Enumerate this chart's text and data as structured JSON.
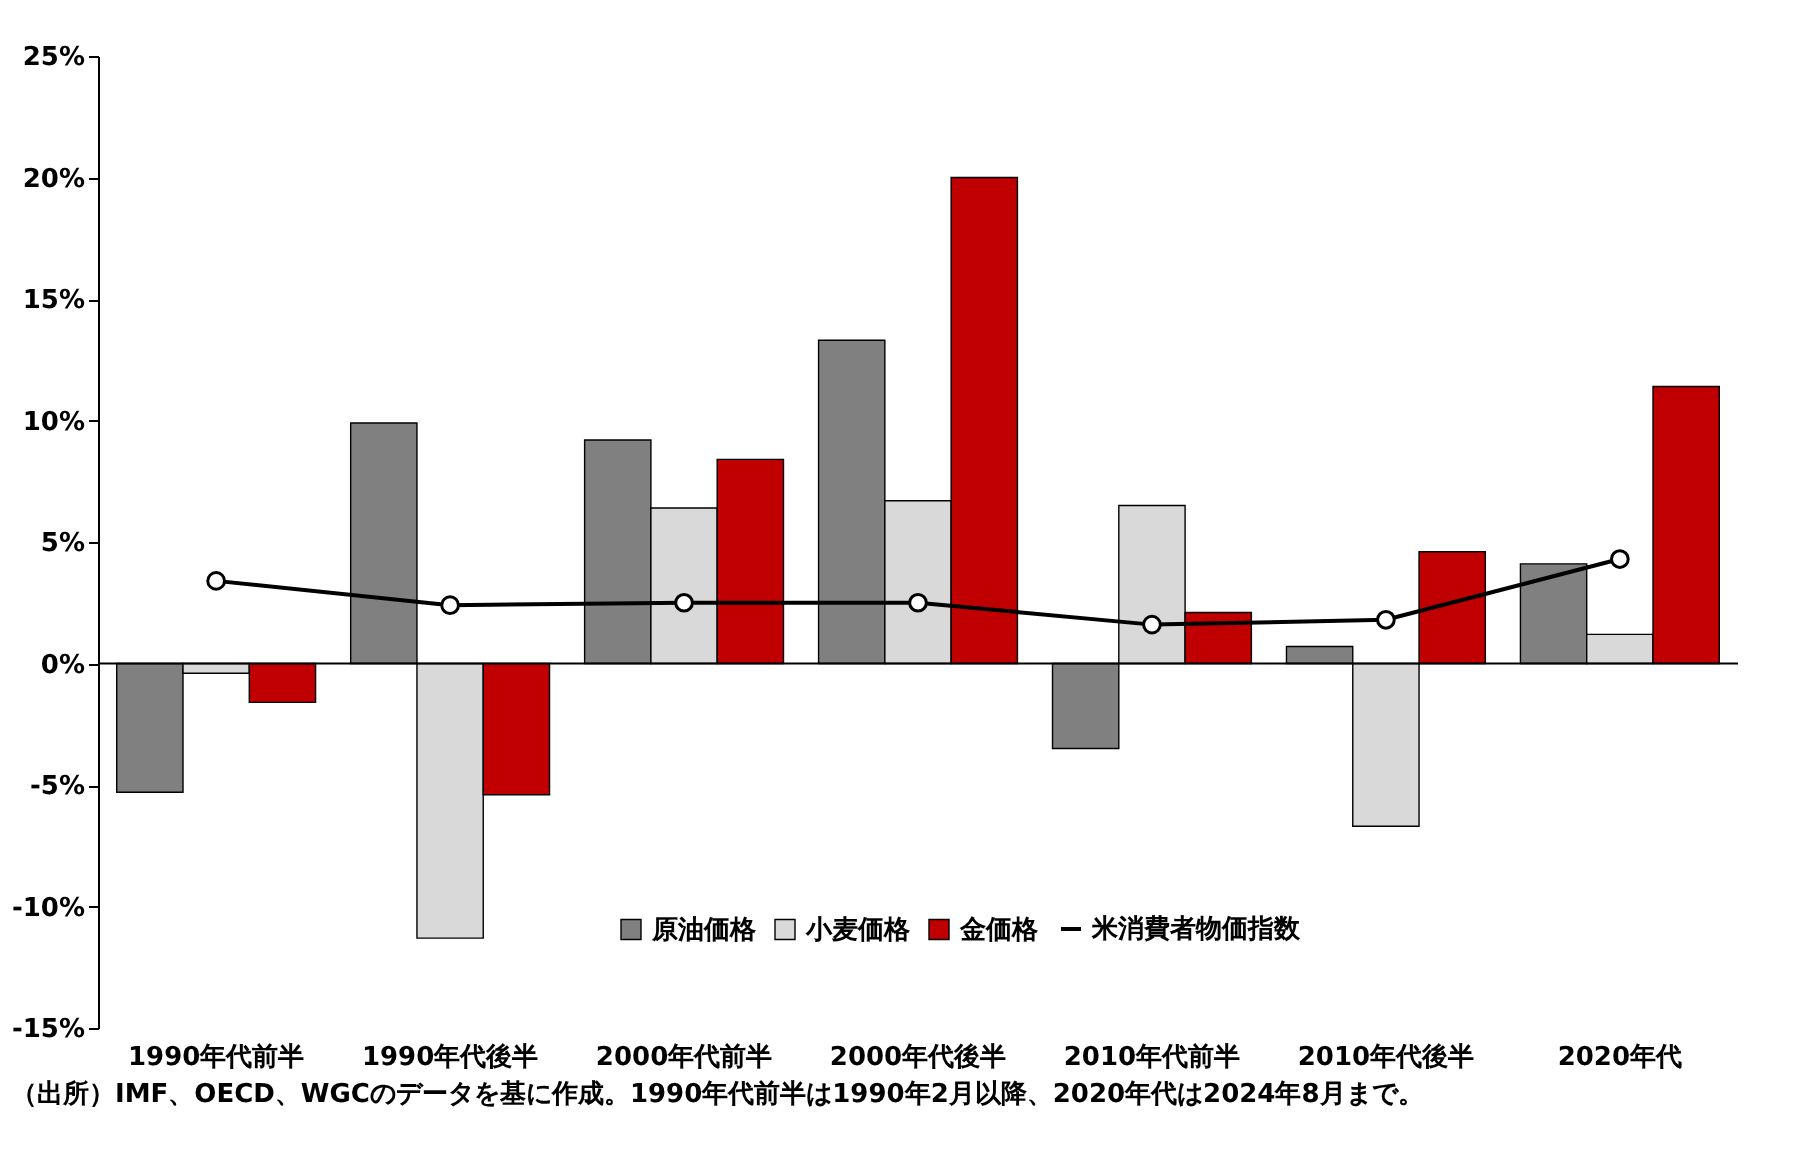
{
  "chart_data": {
    "type": "bar",
    "categories": [
      "1990年代前半",
      "1990年代後半",
      "2000年代前半",
      "2000年代後半",
      "2010年代前半",
      "2010年代後半",
      "2020年代"
    ],
    "series": [
      {
        "name": "原油価格",
        "color": "#808080",
        "values": [
          -5.3,
          9.9,
          9.2,
          13.3,
          -3.5,
          0.7,
          4.1
        ]
      },
      {
        "name": "小麦価格",
        "color": "#d9d9d9",
        "values": [
          -0.4,
          -11.3,
          6.4,
          6.7,
          6.5,
          -6.7,
          1.2
        ]
      },
      {
        "name": "金価格",
        "color": "#c00000",
        "values": [
          -1.6,
          -5.4,
          8.4,
          20.0,
          2.1,
          4.6,
          11.4
        ]
      },
      {
        "name": "米消費者物価指数",
        "color": "#000000",
        "type": "line",
        "marker": "circle",
        "values": [
          3.4,
          2.4,
          2.5,
          2.5,
          1.6,
          1.8,
          4.3
        ]
      }
    ],
    "ylim": [
      -15,
      25
    ],
    "yticks": [
      {
        "value": -15,
        "label": "-15%"
      },
      {
        "value": -10,
        "label": "-10%"
      },
      {
        "value": -5,
        "label": "-5%"
      },
      {
        "value": 0,
        "label": "0%"
      },
      {
        "value": 5,
        "label": "5%"
      },
      {
        "value": 10,
        "label": "10%"
      },
      {
        "value": 15,
        "label": "15%"
      },
      {
        "value": 20,
        "label": "20%"
      },
      {
        "value": 25,
        "label": "25%"
      }
    ],
    "grid": false,
    "ref_lines": [
      {
        "axis": "y",
        "value": 0,
        "color": "#000000"
      }
    ],
    "legend": "bottom",
    "annotations": [
      "（出所）IMF、OECD、WGCのデータを基に作成。1990年代前半は1990年2月以降、2020年代は2024年8月まで。"
    ]
  }
}
